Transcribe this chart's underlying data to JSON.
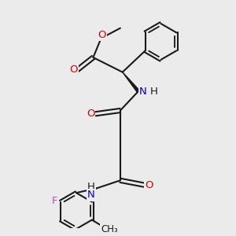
{
  "bg_color": "#ebebeb",
  "bond_color": "#1a1a1a",
  "bond_width": 1.5,
  "atom_colors": {
    "O": "#dd0000",
    "N": "#0000cc",
    "F": "#cc44cc",
    "C": "#1a1a1a",
    "H": "#1a1a1a"
  },
  "font_size": 9.5,
  "fig_w": 3.0,
  "fig_h": 3.0,
  "dpi": 100
}
